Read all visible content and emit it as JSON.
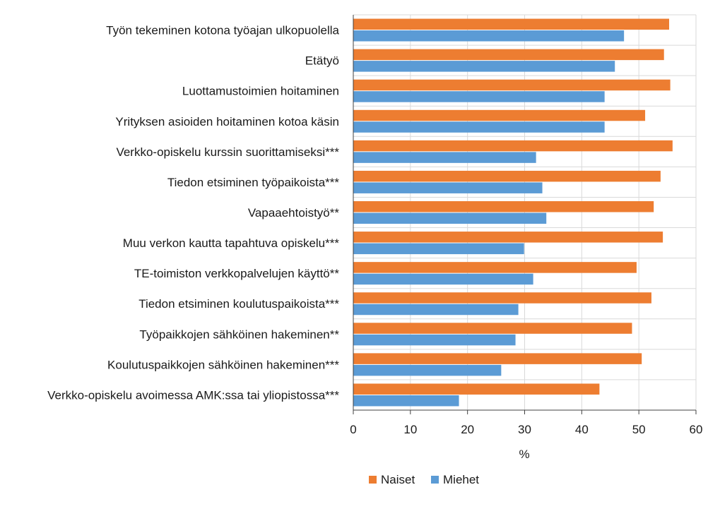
{
  "chart_data": {
    "type": "bar",
    "orientation": "horizontal",
    "title": "",
    "xlabel": "%",
    "ylabel": "",
    "xlim": [
      0,
      60
    ],
    "xticks": [
      0,
      10,
      20,
      30,
      40,
      50,
      60
    ],
    "grid": true,
    "legend_position": "bottom",
    "categories": [
      "Työn tekeminen kotona työajan ulkopuolella",
      "Etätyö",
      "Luottamustoimien hoitaminen",
      "Yrityksen asioiden hoitaminen kotoa käsin",
      "Verkko-opiskelu kurssin suorittamiseksi***",
      "Tiedon etsiminen työpaikoista***",
      "Vapaaehtoistyö**",
      "Muu verkon kautta tapahtuva opiskelu***",
      "TE-toimiston verkkopalvelujen käyttö**",
      "Tiedon etsiminen koulutuspaikoista***",
      "Työpaikkojen sähköinen hakeminen**",
      "Koulutuspaikkojen sähköinen hakeminen***",
      "Verkko-opiskelu avoimessa AMK:ssa tai yliopistossa***"
    ],
    "series": [
      {
        "name": "Naiset",
        "color": "#ed7d31",
        "values": [
          55.3,
          54.4,
          55.5,
          51.1,
          55.9,
          53.8,
          52.6,
          54.2,
          49.6,
          52.2,
          48.8,
          50.5,
          43.1
        ]
      },
      {
        "name": "Miehet",
        "color": "#5b9bd5",
        "values": [
          47.4,
          45.8,
          44.0,
          44.0,
          32.0,
          33.1,
          33.8,
          29.9,
          31.5,
          28.9,
          28.4,
          25.9,
          18.5
        ]
      }
    ]
  }
}
